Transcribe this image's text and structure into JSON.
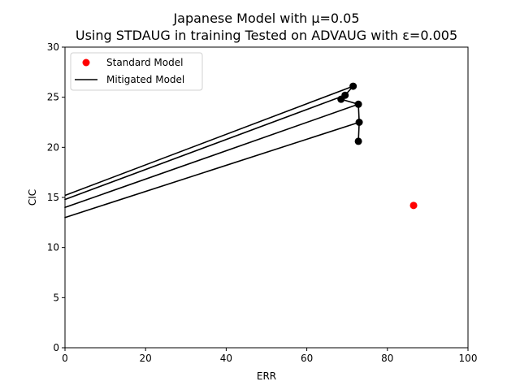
{
  "chart_data": {
    "type": "scatter",
    "title_lines": [
      "Japanese Model with μ=0.05",
      "Using STDAUG in training Tested on ADVAUG with ε=0.005"
    ],
    "xlabel": "ERR",
    "ylabel": "CIC",
    "xlim": [
      0,
      100
    ],
    "ylim": [
      0,
      30
    ],
    "xticks": [
      0,
      20,
      40,
      60,
      80,
      100
    ],
    "yticks": [
      0,
      5,
      10,
      15,
      20,
      25,
      30
    ],
    "grid": false,
    "legend": {
      "placement": "top-left",
      "entries": [
        {
          "label": "Standard Model",
          "marker": "dot",
          "color": "#ff0000"
        },
        {
          "label": "Mitigated Model",
          "marker": "line",
          "color": "#000000"
        }
      ]
    },
    "standard_model": {
      "x": 86.5,
      "y": 14.2,
      "color": "#ff0000"
    },
    "mitigated_model": {
      "color": "#000000",
      "path": [
        {
          "x": 0,
          "y": 15.2
        },
        {
          "x": 71.5,
          "y": 26.1
        },
        {
          "x": 69.5,
          "y": 25.2
        },
        {
          "x": 0,
          "y": 14.8
        },
        {
          "x": 69.5,
          "y": 25.2
        },
        {
          "x": 68.5,
          "y": 24.8
        },
        {
          "x": 72.8,
          "y": 24.3
        },
        {
          "x": 0,
          "y": 14.0
        },
        {
          "x": 72.8,
          "y": 24.3
        },
        {
          "x": 73.0,
          "y": 22.5
        },
        {
          "x": 0,
          "y": 13.0
        },
        {
          "x": 73.0,
          "y": 22.5
        },
        {
          "x": 72.8,
          "y": 20.6
        }
      ],
      "points": [
        {
          "x": 71.5,
          "y": 26.1
        },
        {
          "x": 69.5,
          "y": 25.2
        },
        {
          "x": 68.5,
          "y": 24.8
        },
        {
          "x": 72.8,
          "y": 24.3
        },
        {
          "x": 73.0,
          "y": 22.5
        },
        {
          "x": 72.8,
          "y": 20.6
        }
      ]
    }
  }
}
